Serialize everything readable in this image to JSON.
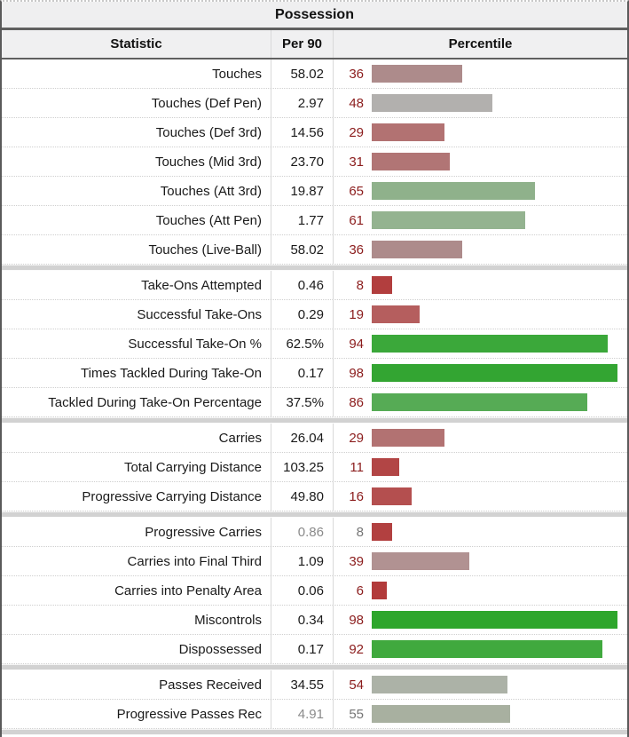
{
  "table": {
    "title": "Possession",
    "columns": [
      "Statistic",
      "Per 90",
      "Percentile"
    ],
    "percentile_scale_max": 99,
    "colors": {
      "percentile_number": "#8b1c1c",
      "grayed_text": "#757575",
      "header_background": "#f0f0f1",
      "title_background": "#efeff0",
      "frame_border": "#5a5a5a"
    },
    "sections": [
      {
        "name": "touches",
        "rows": [
          {
            "label": "Touches",
            "per90": "58.02",
            "percentile": 36,
            "bar_color": "#ad8b8b",
            "grayed": false
          },
          {
            "label": "Touches (Def Pen)",
            "per90": "2.97",
            "percentile": 48,
            "bar_color": "#b2b0ae",
            "grayed": false
          },
          {
            "label": "Touches (Def 3rd)",
            "per90": "14.56",
            "percentile": 29,
            "bar_color": "#b27272",
            "grayed": false
          },
          {
            "label": "Touches (Mid 3rd)",
            "per90": "23.70",
            "percentile": 31,
            "bar_color": "#b17575",
            "grayed": false
          },
          {
            "label": "Touches (Att 3rd)",
            "per90": "19.87",
            "percentile": 65,
            "bar_color": "#8fb18b",
            "grayed": false
          },
          {
            "label": "Touches (Att Pen)",
            "per90": "1.77",
            "percentile": 61,
            "bar_color": "#94b390",
            "grayed": false
          },
          {
            "label": "Touches (Live-Ball)",
            "per90": "58.02",
            "percentile": 36,
            "bar_color": "#ad8b8b",
            "grayed": false
          }
        ]
      },
      {
        "name": "take-ons",
        "rows": [
          {
            "label": "Take-Ons Attempted",
            "per90": "0.46",
            "percentile": 8,
            "bar_color": "#b23e3e",
            "grayed": false
          },
          {
            "label": "Successful Take-Ons",
            "per90": "0.29",
            "percentile": 19,
            "bar_color": "#b55e5e",
            "grayed": false
          },
          {
            "label": "Successful Take-On %",
            "per90": "62.5%",
            "percentile": 94,
            "bar_color": "#3ba83a",
            "grayed": false
          },
          {
            "label": "Times Tackled During Take-On",
            "per90": "0.17",
            "percentile": 98,
            "bar_color": "#33a532",
            "grayed": false
          },
          {
            "label": "Tackled During Take-On Percentage",
            "per90": "37.5%",
            "percentile": 86,
            "bar_color": "#56ab55",
            "grayed": false
          }
        ]
      },
      {
        "name": "carries-distance",
        "rows": [
          {
            "label": "Carries",
            "per90": "26.04",
            "percentile": 29,
            "bar_color": "#b27272",
            "grayed": false
          },
          {
            "label": "Total Carrying Distance",
            "per90": "103.25",
            "percentile": 11,
            "bar_color": "#b24545",
            "grayed": false
          },
          {
            "label": "Progressive Carrying Distance",
            "per90": "49.80",
            "percentile": 16,
            "bar_color": "#b44f4f",
            "grayed": false
          }
        ]
      },
      {
        "name": "carries-outcomes",
        "rows": [
          {
            "label": "Progressive Carries",
            "per90": "0.86",
            "percentile": 8,
            "bar_color": "#b24040",
            "grayed": true
          },
          {
            "label": "Carries into Final Third",
            "per90": "1.09",
            "percentile": 39,
            "bar_color": "#b19292",
            "grayed": false
          },
          {
            "label": "Carries into Penalty Area",
            "per90": "0.06",
            "percentile": 6,
            "bar_color": "#b23a3a",
            "grayed": false
          },
          {
            "label": "Miscontrols",
            "per90": "0.34",
            "percentile": 98,
            "bar_color": "#2ea62c",
            "grayed": false
          },
          {
            "label": "Dispossessed",
            "per90": "0.17",
            "percentile": 92,
            "bar_color": "#40a93e",
            "grayed": false
          }
        ]
      },
      {
        "name": "receiving",
        "rows": [
          {
            "label": "Passes Received",
            "per90": "34.55",
            "percentile": 54,
            "bar_color": "#acb2a7",
            "grayed": false
          },
          {
            "label": "Progressive Passes Rec",
            "per90": "4.91",
            "percentile": 55,
            "bar_color": "#a8b0a0",
            "grayed": true
          }
        ]
      }
    ]
  }
}
